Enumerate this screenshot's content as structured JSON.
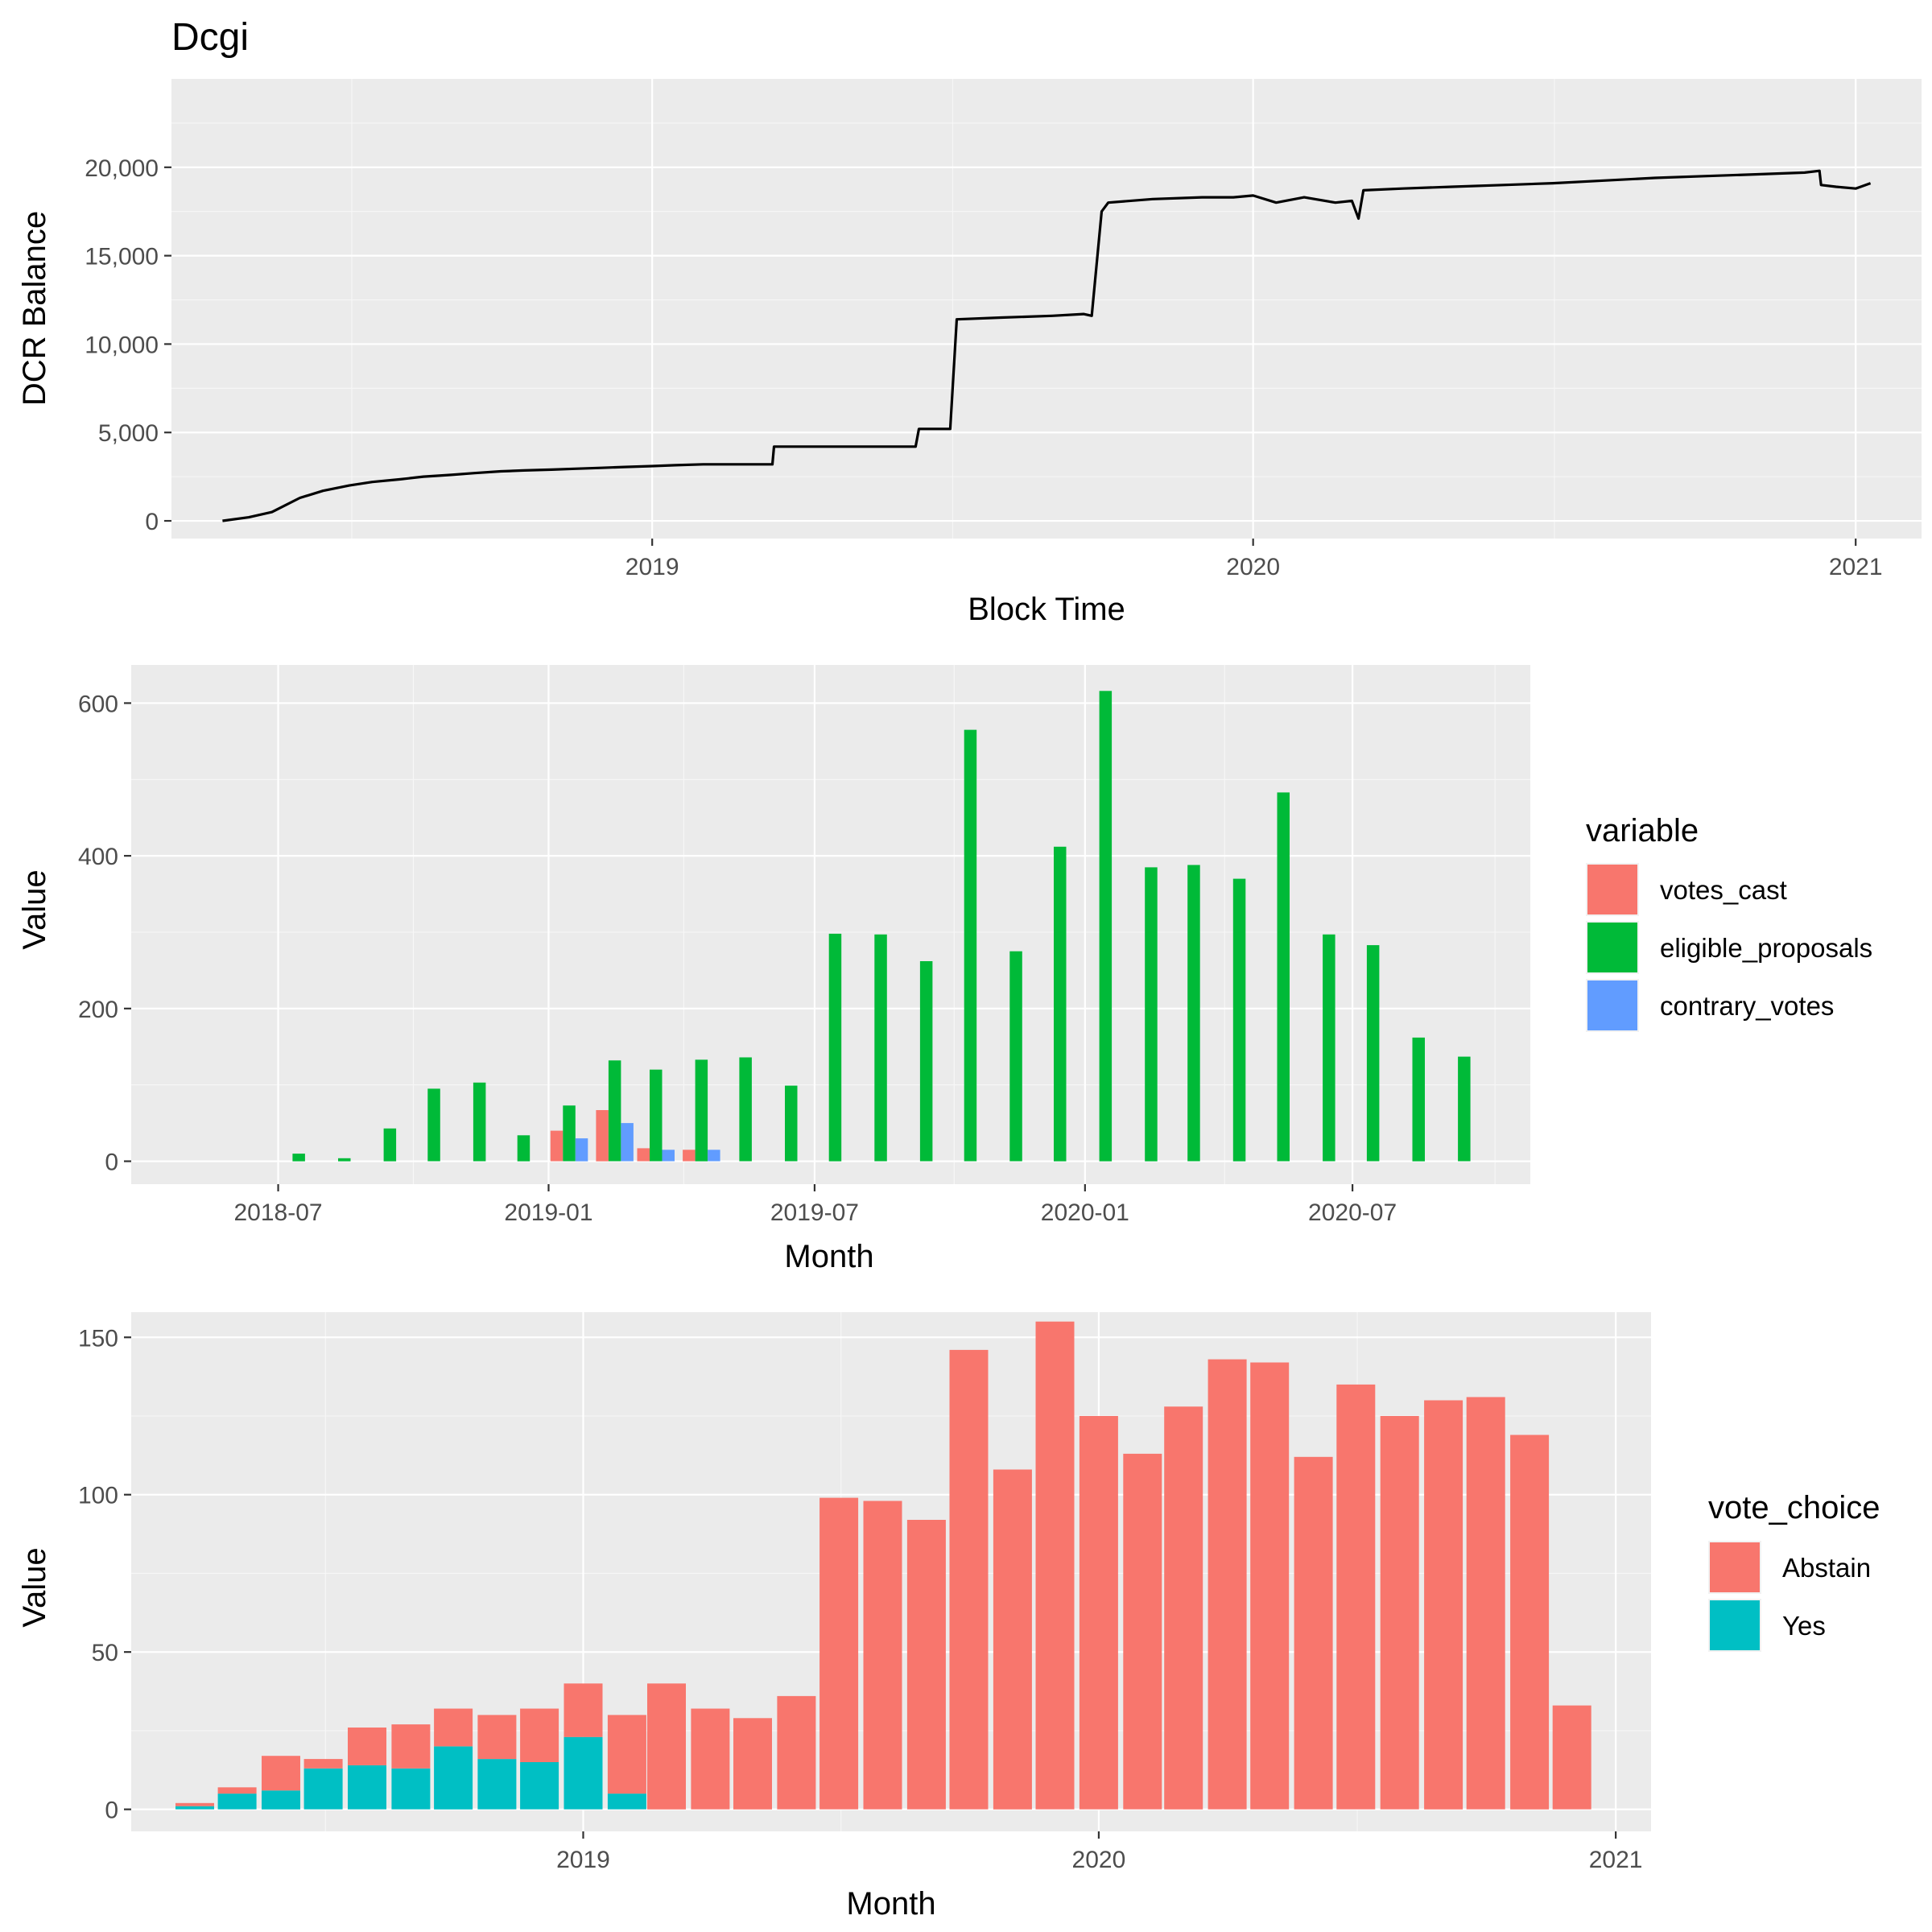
{
  "title": "Dcgi",
  "chart_data": [
    {
      "type": "line",
      "xlabel": "Block Time",
      "ylabel": "DCR Balance",
      "x_ticks": [
        "2019",
        "2020",
        "2021"
      ],
      "y_ticks": [
        "0",
        "5,000",
        "10,000",
        "15,000",
        "20,000"
      ],
      "xlim": [
        "2018-03-15",
        "2021-02-10"
      ],
      "ylim": [
        -1000,
        25000
      ],
      "grid": true,
      "line_color": "#000000",
      "series": [
        {
          "x": [
            "2018-04-15",
            "2018-05-01",
            "2018-05-15",
            "2018-06-01",
            "2018-06-15",
            "2018-07-01",
            "2018-07-15",
            "2018-08-01",
            "2018-08-15",
            "2018-09-01",
            "2018-09-15",
            "2018-10-01",
            "2018-10-15",
            "2018-11-01",
            "2018-11-15",
            "2018-12-01",
            "2018-12-15",
            "2019-01-01",
            "2019-01-15",
            "2019-02-01",
            "2019-02-15",
            "2019-03-01",
            "2019-03-15",
            "2019-03-16",
            "2019-04-15",
            "2019-05-15",
            "2019-06-10",
            "2019-06-12",
            "2019-06-30",
            "2019-07-01",
            "2019-07-05",
            "2019-08-01",
            "2019-09-01",
            "2019-09-20",
            "2019-09-25",
            "2019-10-01",
            "2019-10-05",
            "2019-11-01",
            "2019-12-01",
            "2019-12-20",
            "2020-01-01",
            "2020-01-15",
            "2020-02-01",
            "2020-02-20",
            "2020-03-01",
            "2020-03-05",
            "2020-03-08",
            "2020-04-01",
            "2020-05-01",
            "2020-06-01",
            "2020-07-01",
            "2020-08-01",
            "2020-09-01",
            "2020-10-01",
            "2020-11-01",
            "2020-12-01",
            "2020-12-10",
            "2020-12-11",
            "2020-12-20",
            "2021-01-01",
            "2021-01-10"
          ],
          "y": [
            0,
            200,
            500,
            1300,
            1700,
            2000,
            2200,
            2350,
            2500,
            2600,
            2700,
            2800,
            2850,
            2900,
            2950,
            3000,
            3050,
            3100,
            3150,
            3200,
            3200,
            3200,
            3200,
            4200,
            4200,
            4200,
            4200,
            5200,
            5200,
            5200,
            11400,
            11500,
            11600,
            11700,
            11600,
            17500,
            18000,
            18200,
            18300,
            18300,
            18400,
            18000,
            18300,
            18000,
            18100,
            17100,
            18700,
            18800,
            18900,
            19000,
            19100,
            19250,
            19400,
            19500,
            19600,
            19700,
            19800,
            19000,
            18900,
            18800,
            19100
          ]
        }
      ]
    },
    {
      "type": "bar",
      "xlabel": "Month",
      "ylabel": "Value",
      "x_ticks": [
        "2018-07",
        "2019-01",
        "2019-07",
        "2020-01",
        "2020-07"
      ],
      "y_ticks": [
        "0",
        "200",
        "400",
        "600"
      ],
      "ylim": [
        -30,
        650
      ],
      "grid": true,
      "legend": {
        "title": "variable",
        "position": "right"
      },
      "categories": [
        "2018-07",
        "2018-08",
        "2018-09",
        "2018-10",
        "2018-11",
        "2018-12",
        "2019-01",
        "2019-02",
        "2019-03",
        "2019-04",
        "2019-05",
        "2019-06",
        "2019-07",
        "2019-08",
        "2019-09",
        "2019-10",
        "2019-11",
        "2019-12",
        "2020-01",
        "2020-02",
        "2020-03",
        "2020-04",
        "2020-05",
        "2020-06",
        "2020-07",
        "2020-08",
        "2020-09"
      ],
      "series": [
        {
          "name": "votes_cast",
          "color": "#f8766d",
          "values": [
            0,
            0,
            0,
            0,
            0,
            0,
            40,
            67,
            17,
            15,
            0,
            0,
            0,
            0,
            0,
            0,
            0,
            0,
            0,
            0,
            0,
            0,
            0,
            0,
            0,
            0,
            0
          ]
        },
        {
          "name": "eligible_proposals",
          "color": "#00ba38",
          "values": [
            10,
            4,
            43,
            95,
            103,
            34,
            73,
            132,
            120,
            133,
            136,
            99,
            298,
            297,
            262,
            565,
            275,
            412,
            616,
            385,
            388,
            370,
            483,
            297,
            283,
            162,
            137
          ]
        },
        {
          "name": "contrary_votes",
          "color": "#619cff",
          "values": [
            0,
            0,
            0,
            0,
            0,
            0,
            30,
            50,
            15,
            15,
            0,
            0,
            0,
            0,
            0,
            0,
            0,
            0,
            0,
            0,
            0,
            0,
            0,
            0,
            0,
            0,
            0
          ]
        }
      ]
    },
    {
      "type": "bar",
      "stacked": true,
      "xlabel": "Month",
      "ylabel": "Value",
      "x_ticks": [
        "2019",
        "2020",
        "2021"
      ],
      "y_ticks": [
        "0",
        "50",
        "100",
        "150"
      ],
      "ylim": [
        -7,
        158
      ],
      "grid": true,
      "legend": {
        "title": "vote_choice",
        "position": "right"
      },
      "categories": [
        "2018-04",
        "2018-05",
        "2018-06",
        "2018-07",
        "2018-08",
        "2018-09",
        "2018-10",
        "2018-11",
        "2018-12",
        "2019-01",
        "2019-02",
        "2019-03",
        "2019-04",
        "2019-05",
        "2019-06",
        "2019-07",
        "2019-08",
        "2019-09",
        "2019-10",
        "2019-11",
        "2019-12",
        "2020-01",
        "2020-02",
        "2020-03",
        "2020-04",
        "2020-05",
        "2020-06",
        "2020-07",
        "2020-08",
        "2020-09",
        "2020-10",
        "2020-11",
        "2020-12"
      ],
      "series": [
        {
          "name": "Abstain",
          "color": "#f8766d",
          "values": [
            1,
            2,
            11,
            3,
            12,
            14,
            12,
            14,
            17,
            17,
            25,
            40,
            32,
            29,
            36,
            99,
            98,
            92,
            146,
            108,
            155,
            125,
            113,
            128,
            143,
            142,
            112,
            135,
            125,
            130,
            131,
            119,
            33
          ]
        },
        {
          "name": "Yes",
          "color": "#00bfc4",
          "values": [
            1,
            5,
            6,
            13,
            14,
            13,
            20,
            16,
            15,
            23,
            5,
            0,
            0,
            0,
            0,
            0,
            0,
            0,
            0,
            0,
            0,
            0,
            0,
            0,
            0,
            0,
            0,
            0,
            0,
            0,
            0,
            0,
            0
          ]
        }
      ]
    }
  ]
}
